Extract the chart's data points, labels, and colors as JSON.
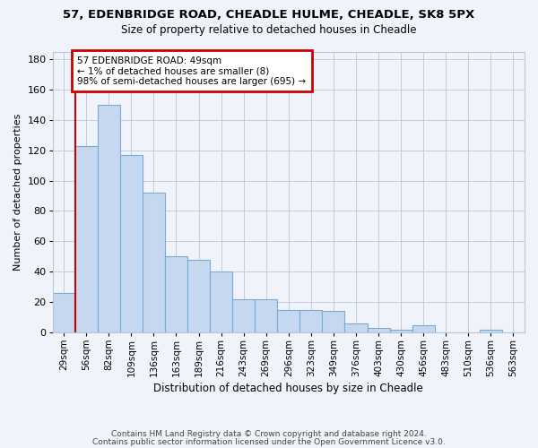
{
  "title1": "57, EDENBRIDGE ROAD, CHEADLE HULME, CHEADLE, SK8 5PX",
  "title2": "Size of property relative to detached houses in Cheadle",
  "xlabel": "Distribution of detached houses by size in Cheadle",
  "ylabel": "Number of detached properties",
  "categories": [
    "29sqm",
    "56sqm",
    "82sqm",
    "109sqm",
    "136sqm",
    "163sqm",
    "189sqm",
    "216sqm",
    "243sqm",
    "269sqm",
    "296sqm",
    "323sqm",
    "349sqm",
    "376sqm",
    "403sqm",
    "430sqm",
    "456sqm",
    "483sqm",
    "510sqm",
    "536sqm",
    "563sqm"
  ],
  "values": [
    26,
    123,
    150,
    117,
    92,
    50,
    48,
    40,
    22,
    22,
    15,
    15,
    14,
    6,
    3,
    2,
    5,
    0,
    0,
    2,
    0
  ],
  "bar_color": "#c5d8f0",
  "bar_edge_color": "#7aaad4",
  "annotation_text_line1": "57 EDENBRIDGE ROAD: 49sqm",
  "annotation_text_line2": "← 1% of detached houses are smaller (8)",
  "annotation_text_line3": "98% of semi-detached houses are larger (695) →",
  "annotation_box_facecolor": "#ffffff",
  "annotation_box_edgecolor": "#cc0000",
  "vline_color": "#cc0000",
  "vline_x": 0.5,
  "ylim": [
    0,
    185
  ],
  "yticks": [
    0,
    20,
    40,
    60,
    80,
    100,
    120,
    140,
    160,
    180
  ],
  "footer1": "Contains HM Land Registry data © Crown copyright and database right 2024.",
  "footer2": "Contains public sector information licensed under the Open Government Licence v3.0.",
  "bg_color": "#f0f4fa"
}
